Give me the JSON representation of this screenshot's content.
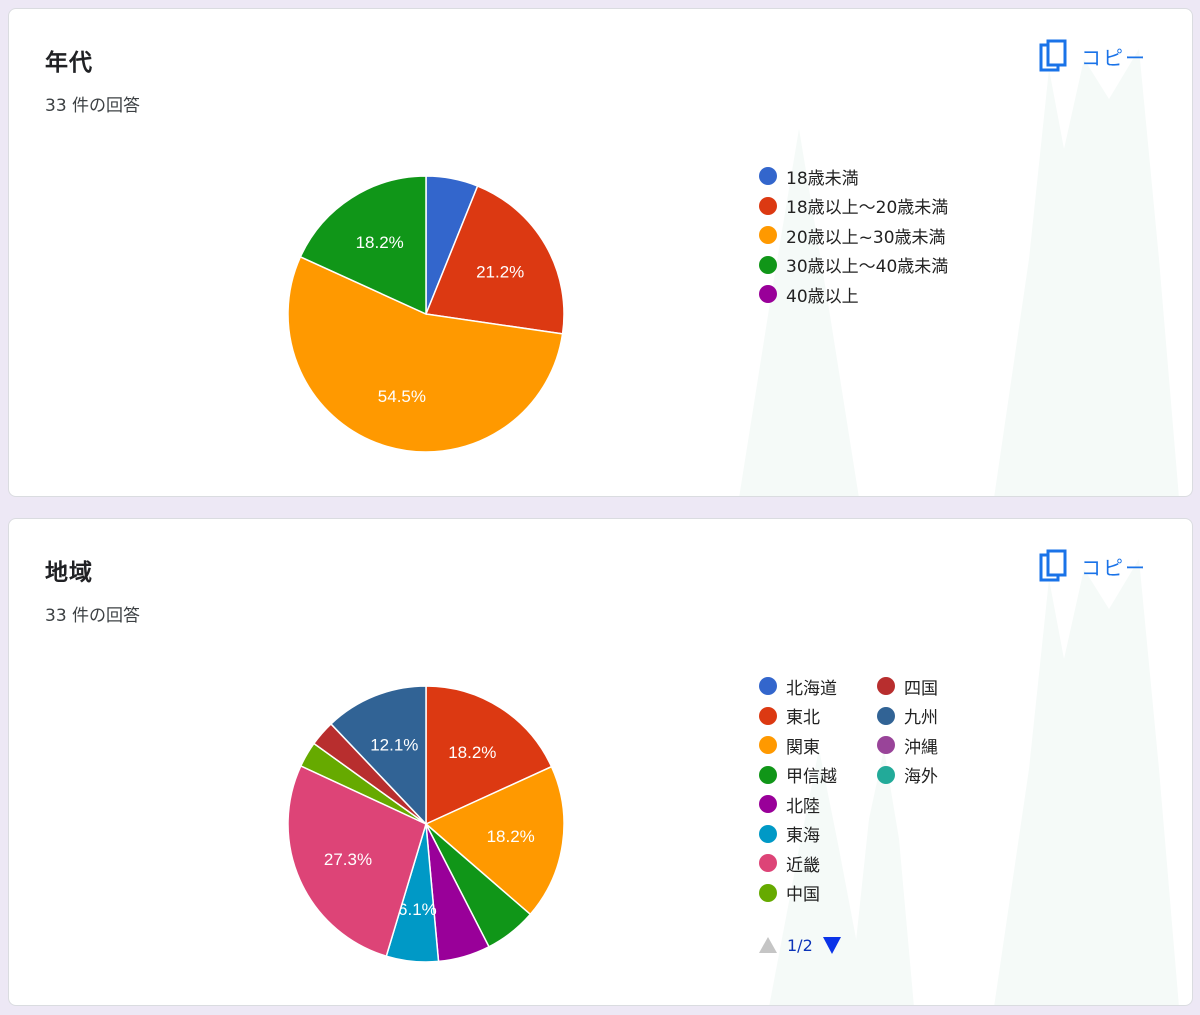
{
  "copy_label": "コピー",
  "charts": [
    {
      "title": "年代",
      "count": "33 件の回答",
      "chart_data": {
        "type": "pie",
        "start_angle_deg": 90,
        "direction": "clockwise",
        "slices": [
          {
            "label": "18歳未満",
            "value": 6.1,
            "color": "#3366cc",
            "show_label": false
          },
          {
            "label": "18歳以上〜20歳未満",
            "value": 21.2,
            "color": "#dc3912",
            "show_label": true
          },
          {
            "label": "20歳以上~30歳未満",
            "value": 54.5,
            "color": "#ff9900",
            "show_label": true
          },
          {
            "label": "30歳以上〜40歳未満",
            "value": 18.2,
            "color": "#109618",
            "show_label": true
          },
          {
            "label": "40歳以上",
            "value": 0,
            "color": "#990099",
            "show_label": false
          }
        ],
        "legend_position": "right"
      }
    },
    {
      "title": "地域",
      "count": "33 件の回答",
      "chart_data": {
        "type": "pie",
        "start_angle_deg": 90,
        "direction": "clockwise",
        "slices": [
          {
            "label": "北海道",
            "value": 0,
            "color": "#3366cc",
            "show_label": false
          },
          {
            "label": "東北",
            "value": 18.2,
            "color": "#dc3912",
            "show_label": true
          },
          {
            "label": "関東",
            "value": 18.2,
            "color": "#ff9900",
            "show_label": true
          },
          {
            "label": "甲信越",
            "value": 6.1,
            "color": "#109618",
            "show_label": false
          },
          {
            "label": "北陸",
            "value": 6.1,
            "color": "#990099",
            "show_label": false
          },
          {
            "label": "東海",
            "value": 6.1,
            "color": "#0099c6",
            "show_label": true
          },
          {
            "label": "近畿",
            "value": 27.3,
            "color": "#dd4477",
            "show_label": true
          },
          {
            "label": "中国",
            "value": 3.0,
            "color": "#66aa00",
            "show_label": false
          },
          {
            "label": "四国",
            "value": 3.0,
            "color": "#b82e2e",
            "show_label": false
          },
          {
            "label": "九州",
            "value": 12.1,
            "color": "#316395",
            "show_label": true
          },
          {
            "label": "沖縄",
            "value": 0,
            "color": "#994499",
            "show_label": false
          },
          {
            "label": "海外",
            "value": 0,
            "color": "#22aa99",
            "show_label": false
          }
        ],
        "legend_position": "right",
        "legend_pager": {
          "text": "1/2"
        }
      }
    }
  ]
}
